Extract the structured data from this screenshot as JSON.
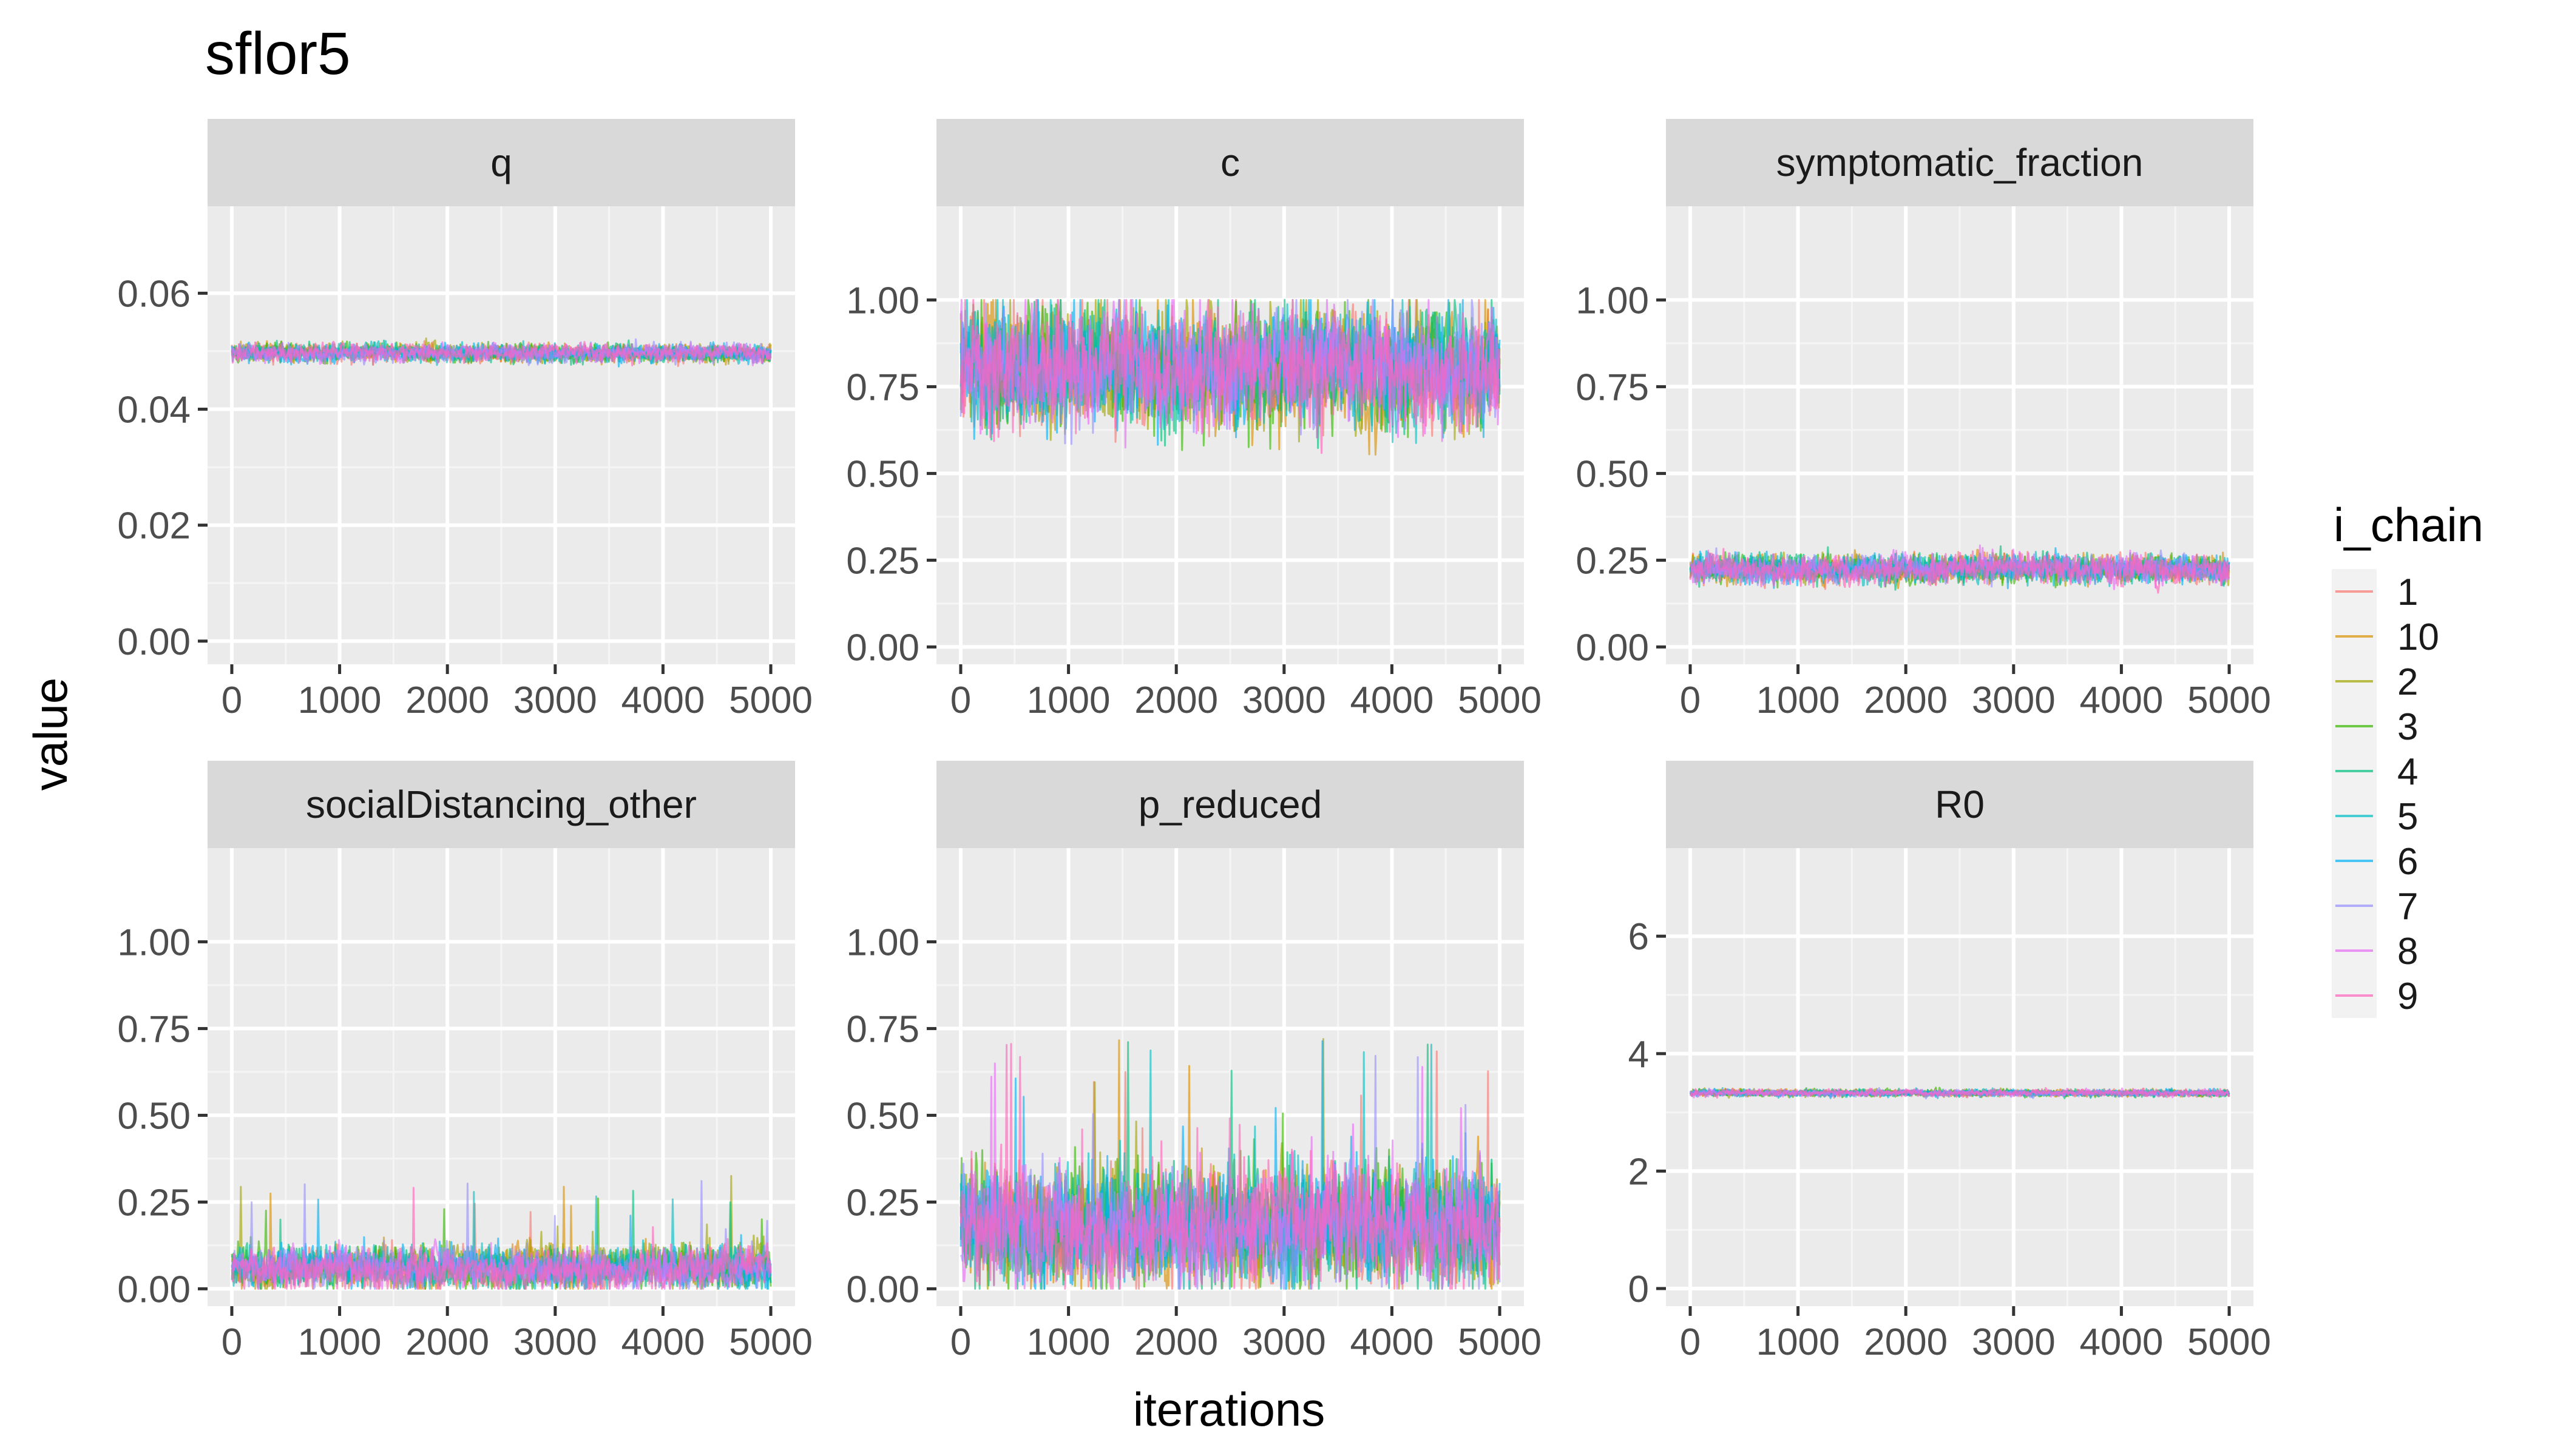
{
  "chart_data": {
    "type": "line",
    "title": "sflor5",
    "xlabel": "iterations",
    "ylabel": "value",
    "x_range": [
      0,
      5000
    ],
    "x_ticks": [
      0,
      1000,
      2000,
      3000,
      4000,
      5000
    ],
    "x_tick_labels": [
      "0",
      "1000",
      "2000",
      "3000",
      "4000",
      "5000"
    ],
    "legend": {
      "title": "i_chain",
      "position": "right",
      "entries": [
        "1",
        "10",
        "2",
        "3",
        "4",
        "5",
        "6",
        "7",
        "8",
        "9"
      ],
      "colors": [
        "#F8766D",
        "#D89000",
        "#A3A500",
        "#39B600",
        "#00BF7D",
        "#00BFC4",
        "#00B0F6",
        "#9590FF",
        "#E76BF3",
        "#FF62BC"
      ]
    },
    "panels": [
      {
        "name": "q",
        "ylim": [
          -0.004,
          0.075
        ],
        "y_ticks": [
          0,
          0.02,
          0.04,
          0.06
        ],
        "y_tick_labels": [
          "0.00",
          "0.02",
          "0.04",
          "0.06"
        ],
        "trace": {
          "center": 0.0497,
          "spread": 0.0013,
          "low": 0.046,
          "high": 0.054,
          "spike": 0
        }
      },
      {
        "name": "c",
        "ylim": [
          -0.05,
          1.27
        ],
        "y_ticks": [
          0,
          0.25,
          0.5,
          0.75,
          1.0
        ],
        "y_tick_labels": [
          "0.00",
          "0.25",
          "0.50",
          "0.75",
          "1.00"
        ],
        "trace": {
          "center": 0.8,
          "spread": 0.14,
          "low": 0.33,
          "high": 1.0,
          "spike": 0.03
        }
      },
      {
        "name": "symptomatic_fraction",
        "ylim": [
          -0.05,
          1.27
        ],
        "y_ticks": [
          0,
          0.25,
          0.5,
          0.75,
          1.0
        ],
        "y_tick_labels": [
          "0.00",
          "0.25",
          "0.50",
          "0.75",
          "1.00"
        ],
        "trace": {
          "center": 0.225,
          "spread": 0.035,
          "low": 0.08,
          "high": 0.34,
          "spike": 0
        }
      },
      {
        "name": "socialDistancing_other",
        "ylim": [
          -0.05,
          1.27
        ],
        "y_ticks": [
          0,
          0.25,
          0.5,
          0.75,
          1.0
        ],
        "y_tick_labels": [
          "0.00",
          "0.25",
          "0.50",
          "0.75",
          "1.00"
        ],
        "trace": {
          "center": 0.06,
          "spread": 0.05,
          "low": 0.0,
          "high": 0.43,
          "spike": 0.015
        }
      },
      {
        "name": "p_reduced",
        "ylim": [
          -0.05,
          1.27
        ],
        "y_ticks": [
          0,
          0.25,
          0.5,
          0.75,
          1.0
        ],
        "y_tick_labels": [
          "0.00",
          "0.25",
          "0.50",
          "0.75",
          "1.00"
        ],
        "trace": {
          "center": 0.18,
          "spread": 0.14,
          "low": 0.0,
          "high": 0.84,
          "spike": 0.025
        }
      },
      {
        "name": "R0",
        "ylim": [
          -0.3,
          7.5
        ],
        "y_ticks": [
          0,
          2,
          4,
          6
        ],
        "y_tick_labels": [
          "0",
          "2",
          "4",
          "6"
        ],
        "trace": {
          "center": 3.33,
          "spread": 0.05,
          "low": 3.1,
          "high": 3.5,
          "spike": 0
        }
      }
    ]
  }
}
